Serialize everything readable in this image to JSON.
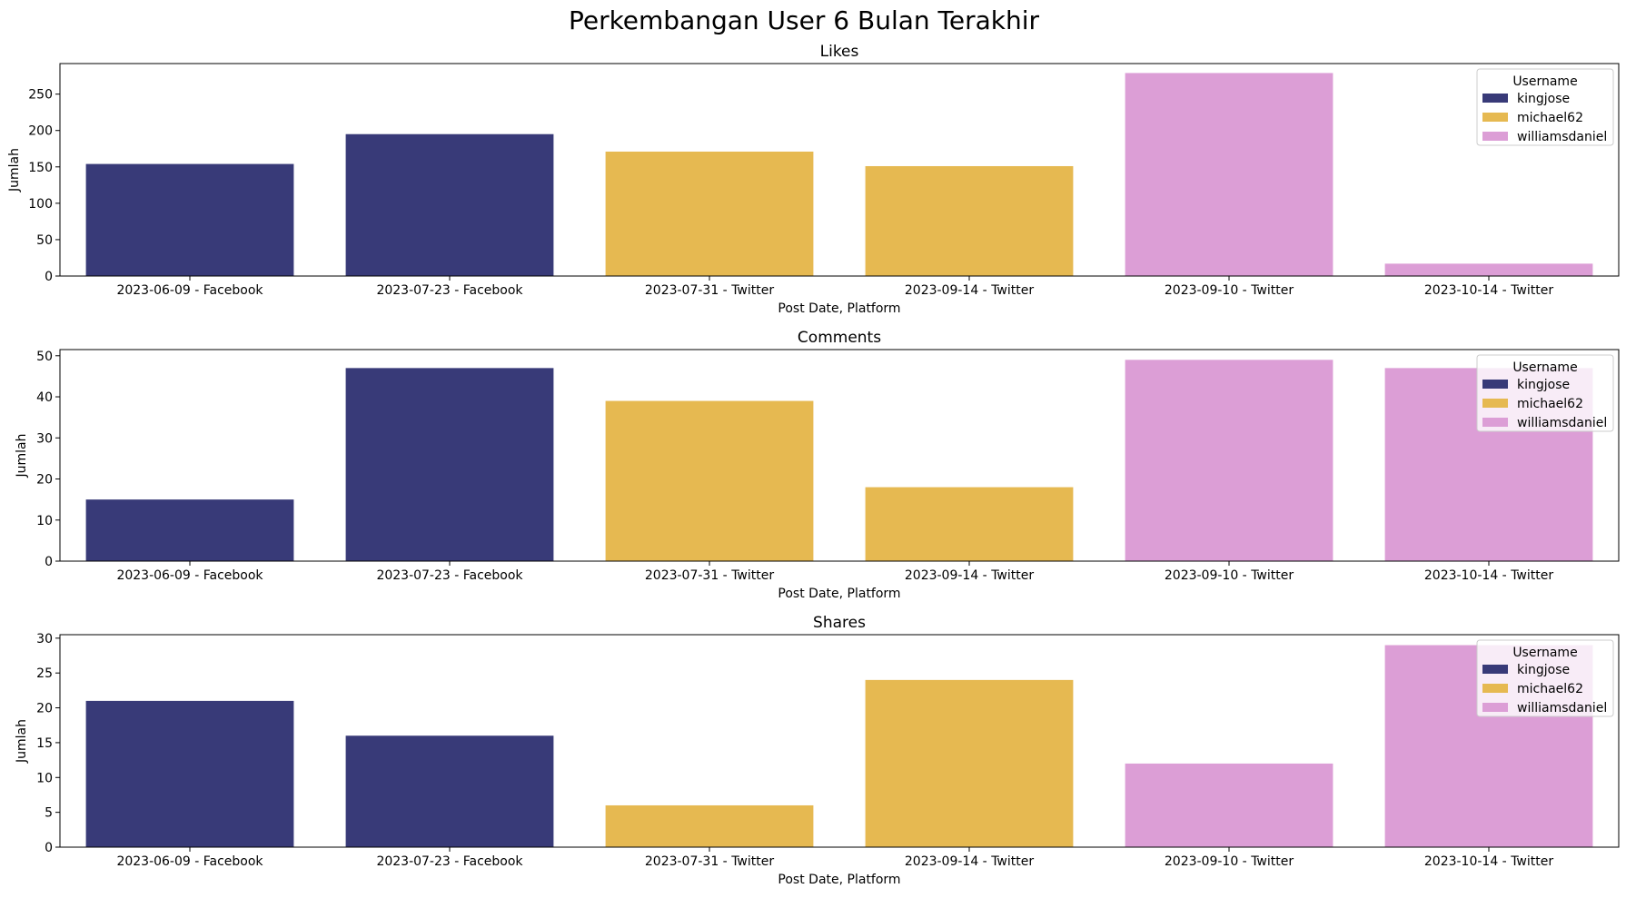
{
  "figure": {
    "title": "Perkembangan User 6 Bulan Terakhir"
  },
  "chart_data": [
    {
      "type": "bar",
      "title": "Likes",
      "xlabel": "Post Date, Platform",
      "ylabel": "Jumlah",
      "categories": [
        "2023-06-09 - Facebook",
        "2023-07-23 - Facebook",
        "2023-07-31 - Twitter",
        "2023-09-14 - Twitter",
        "2023-09-10 - Twitter",
        "2023-10-14 - Twitter"
      ],
      "values": [
        154,
        195,
        171,
        151,
        279,
        17
      ],
      "users": [
        "kingjose",
        "kingjose",
        "michael62",
        "michael62",
        "williamsdaniel",
        "williamsdaniel"
      ],
      "ylim": [
        0,
        292
      ],
      "yticks": [
        0,
        50,
        100,
        150,
        200,
        250
      ],
      "legend": {
        "title": "Username",
        "position": "top-right"
      }
    },
    {
      "type": "bar",
      "title": "Comments",
      "xlabel": "Post Date, Platform",
      "ylabel": "Jumlah",
      "categories": [
        "2023-06-09 - Facebook",
        "2023-07-23 - Facebook",
        "2023-07-31 - Twitter",
        "2023-09-14 - Twitter",
        "2023-09-10 - Twitter",
        "2023-10-14 - Twitter"
      ],
      "values": [
        15,
        47,
        39,
        18,
        49,
        47
      ],
      "users": [
        "kingjose",
        "kingjose",
        "michael62",
        "michael62",
        "williamsdaniel",
        "williamsdaniel"
      ],
      "ylim": [
        0,
        51.5
      ],
      "yticks": [
        0,
        10,
        20,
        30,
        40,
        50
      ],
      "legend": {
        "title": "Username",
        "position": "top-right"
      }
    },
    {
      "type": "bar",
      "title": "Shares",
      "xlabel": "Post Date, Platform",
      "ylabel": "Jumlah",
      "categories": [
        "2023-06-09 - Facebook",
        "2023-07-23 - Facebook",
        "2023-07-31 - Twitter",
        "2023-09-14 - Twitter",
        "2023-09-10 - Twitter",
        "2023-10-14 - Twitter"
      ],
      "values": [
        21,
        16,
        6,
        24,
        12,
        29
      ],
      "users": [
        "kingjose",
        "kingjose",
        "michael62",
        "michael62",
        "williamsdaniel",
        "williamsdaniel"
      ],
      "ylim": [
        0,
        30.5
      ],
      "yticks": [
        0,
        5,
        10,
        15,
        20,
        25,
        30
      ],
      "legend": {
        "title": "Username",
        "position": "top-right"
      }
    }
  ],
  "legend_entries": [
    {
      "name": "kingjose",
      "color": "#383a78"
    },
    {
      "name": "michael62",
      "color": "#e6b951"
    },
    {
      "name": "williamsdaniel",
      "color": "#dc9ed6"
    }
  ]
}
